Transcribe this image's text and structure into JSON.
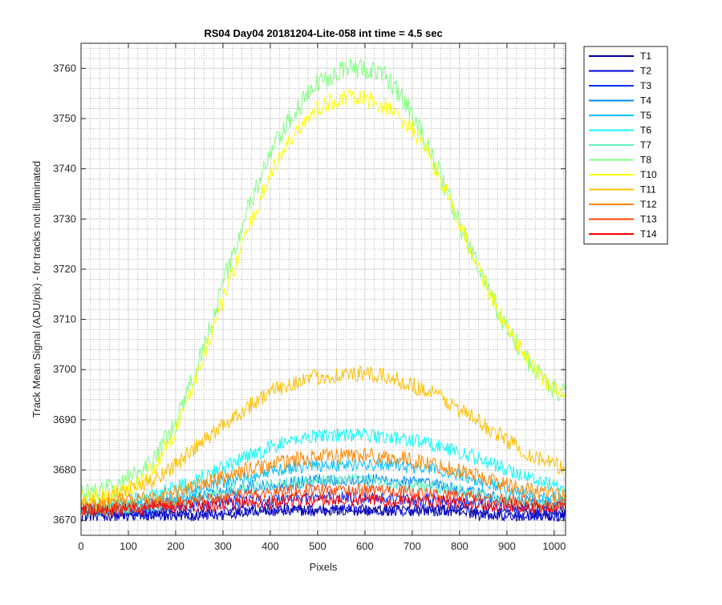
{
  "chart_data": {
    "type": "line",
    "title": "RS04 Day04 20181204-Lite-058 int time = 4.5 sec",
    "xlabel": "Pixels",
    "ylabel": "Track Mean Signal (ADU/pix) - for tracks not illuminated",
    "xlim": [
      0,
      1024
    ],
    "ylim": [
      3667,
      3765
    ],
    "xticks": [
      "0",
      "100",
      "200",
      "300",
      "400",
      "500",
      "600",
      "700",
      "800",
      "900",
      "1000"
    ],
    "yticks": [
      "3670",
      "3680",
      "3690",
      "3700",
      "3710",
      "3720",
      "3730",
      "3740",
      "3750",
      "3760"
    ],
    "grid": true,
    "minor_grid": true,
    "legend_position": "outside-top-right",
    "x_points": [
      0,
      50,
      100,
      150,
      200,
      250,
      300,
      350,
      400,
      450,
      500,
      550,
      600,
      650,
      700,
      750,
      800,
      850,
      900,
      950,
      1000,
      1024
    ],
    "series": [
      {
        "name": "T1",
        "color": "#00008F",
        "values": [
          3671,
          3671,
          3671,
          3671,
          3671,
          3671,
          3671,
          3672,
          3672,
          3672,
          3672,
          3672,
          3672,
          3672,
          3672,
          3672,
          3672,
          3671,
          3671,
          3671,
          3671,
          3671
        ]
      },
      {
        "name": "T2",
        "color": "#0000D4",
        "values": [
          3671,
          3671,
          3671,
          3671,
          3671,
          3671,
          3671.5,
          3672,
          3672,
          3672,
          3672,
          3672,
          3672,
          3672,
          3672,
          3672,
          3672,
          3671.5,
          3671,
          3671,
          3671,
          3671
        ]
      },
      {
        "name": "T3",
        "color": "#0030FF",
        "values": [
          3672,
          3672,
          3672,
          3672,
          3672.5,
          3673,
          3673.5,
          3674,
          3674,
          3674.5,
          3674.5,
          3674.5,
          3674.5,
          3674.5,
          3674,
          3674,
          3673.5,
          3673,
          3672.5,
          3672,
          3672,
          3672
        ]
      },
      {
        "name": "T4",
        "color": "#0088FF",
        "values": [
          3672,
          3672,
          3672.5,
          3673,
          3673.5,
          3674.5,
          3675.5,
          3676.5,
          3677,
          3677.5,
          3678,
          3678,
          3678,
          3678,
          3677.5,
          3677,
          3676,
          3675,
          3674,
          3673.5,
          3673,
          3673
        ]
      },
      {
        "name": "T5",
        "color": "#00C0FF",
        "values": [
          3672,
          3672,
          3673,
          3673.5,
          3674.5,
          3676,
          3677.5,
          3678.5,
          3679.5,
          3680.5,
          3681,
          3681,
          3681,
          3681,
          3680.5,
          3680,
          3679,
          3677.5,
          3676.5,
          3675,
          3674.5,
          3674
        ]
      },
      {
        "name": "T6",
        "color": "#10F8F8",
        "values": [
          3673,
          3673,
          3674,
          3675,
          3676.5,
          3678.5,
          3680.5,
          3682.5,
          3684.5,
          3686,
          3687,
          3687,
          3687,
          3686.5,
          3686,
          3685,
          3683.5,
          3682,
          3680,
          3678.5,
          3677,
          3676.5
        ]
      },
      {
        "name": "T7",
        "color": "#60F0C0",
        "values": [
          3672,
          3672,
          3672.5,
          3673,
          3673.5,
          3674.5,
          3675.5,
          3676.5,
          3677,
          3677.5,
          3678,
          3678,
          3678,
          3677.5,
          3677,
          3676.5,
          3676,
          3675,
          3674,
          3673.5,
          3673,
          3673
        ]
      },
      {
        "name": "T8",
        "color": "#80FF80",
        "values": [
          3675,
          3676,
          3678,
          3682,
          3689,
          3702,
          3717,
          3731,
          3743,
          3751,
          3757,
          3760,
          3760,
          3758,
          3751,
          3741,
          3729,
          3718,
          3708,
          3701,
          3696,
          3695
        ]
      },
      {
        "name": "T10",
        "color": "#FFFF00",
        "values": [
          3674,
          3675,
          3676,
          3680,
          3688,
          3700,
          3714,
          3727,
          3739,
          3747,
          3752,
          3754,
          3754,
          3752,
          3748,
          3740,
          3729,
          3718,
          3708,
          3701,
          3696,
          3695
        ]
      },
      {
        "name": "T11",
        "color": "#FFC000",
        "values": [
          3673,
          3674,
          3676,
          3678,
          3681,
          3685,
          3689,
          3692.5,
          3695.5,
          3697.5,
          3698.5,
          3699,
          3699,
          3698.5,
          3697,
          3695,
          3692,
          3689,
          3686,
          3683,
          3681,
          3680
        ]
      },
      {
        "name": "T12",
        "color": "#FF8800",
        "values": [
          3673,
          3673,
          3674,
          3674.5,
          3675.5,
          3677,
          3678.5,
          3680,
          3681,
          3682,
          3682.5,
          3683,
          3683,
          3682.5,
          3682,
          3681,
          3680,
          3678.5,
          3677,
          3676,
          3675,
          3675
        ]
      },
      {
        "name": "T13",
        "color": "#FF4400",
        "values": [
          3672,
          3672,
          3672.5,
          3673,
          3673.5,
          3674,
          3674.5,
          3675,
          3675.5,
          3676,
          3676,
          3676,
          3676,
          3676,
          3675.5,
          3675,
          3675,
          3674.5,
          3674,
          3673.5,
          3673,
          3673
        ]
      },
      {
        "name": "T14",
        "color": "#FF0000",
        "values": [
          3672,
          3672,
          3672,
          3672.5,
          3672.5,
          3673,
          3673,
          3673.5,
          3673.5,
          3674,
          3674,
          3674,
          3674,
          3674,
          3674,
          3673.5,
          3673.5,
          3673,
          3673,
          3672.5,
          3672.5,
          3672.5
        ]
      }
    ]
  }
}
